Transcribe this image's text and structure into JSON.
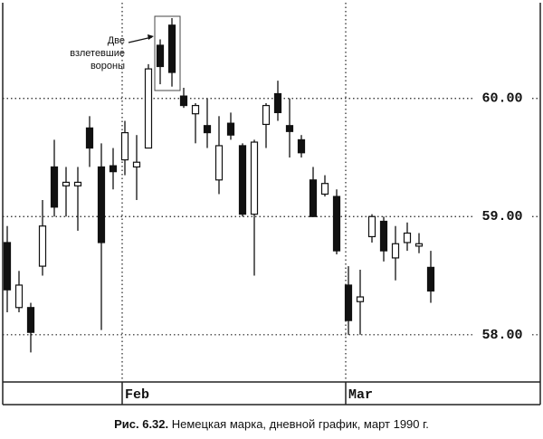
{
  "chart_data": {
    "type": "candlestick",
    "categories": [
      null,
      null,
      null,
      null,
      null,
      null,
      null,
      null,
      null,
      null,
      "Feb",
      null,
      null,
      null,
      null,
      null,
      null,
      null,
      null,
      null,
      null,
      null,
      null,
      null,
      null,
      null,
      null,
      null,
      null,
      "Mar",
      null,
      null,
      null,
      null,
      null,
      null,
      null
    ],
    "open": [
      58.78,
      58.23,
      58.23,
      58.58,
      59.42,
      59.26,
      59.26,
      59.75,
      59.42,
      59.43,
      59.48,
      59.42,
      59.58,
      60.45,
      60.62,
      60.02,
      59.87,
      59.77,
      59.31,
      59.79,
      59.6,
      59.02,
      59.78,
      60.04,
      59.77,
      59.65,
      59.31,
      59.19,
      59.17,
      58.42,
      58.28,
      58.83,
      58.96,
      58.65,
      58.78,
      58.75,
      58.57
    ],
    "high": [
      58.92,
      58.54,
      58.27,
      59.14,
      59.65,
      59.42,
      59.42,
      59.85,
      59.62,
      59.58,
      59.81,
      59.69,
      60.29,
      60.5,
      60.68,
      60.09,
      59.96,
      60.0,
      59.85,
      59.88,
      59.62,
      59.65,
      59.96,
      60.15,
      60.0,
      59.69,
      59.42,
      59.35,
      59.23,
      58.58,
      58.55,
      59.02,
      59.0,
      58.92,
      58.95,
      58.86,
      58.71
    ],
    "low": [
      58.19,
      58.19,
      57.85,
      58.5,
      59.0,
      59.0,
      58.88,
      59.42,
      58.04,
      59.23,
      59.35,
      59.14,
      59.58,
      60.12,
      60.1,
      59.92,
      59.62,
      59.58,
      59.19,
      59.65,
      59.0,
      58.5,
      59.58,
      59.81,
      59.5,
      59.5,
      59.0,
      59.17,
      58.68,
      58.0,
      58.0,
      58.78,
      58.62,
      58.46,
      58.71,
      58.69,
      58.27
    ],
    "close": [
      58.38,
      58.42,
      58.02,
      58.92,
      59.08,
      59.29,
      59.29,
      59.58,
      58.78,
      59.38,
      59.71,
      59.46,
      60.25,
      60.27,
      60.22,
      59.94,
      59.94,
      59.71,
      59.6,
      59.69,
      59.02,
      59.63,
      59.94,
      59.88,
      59.72,
      59.54,
      59.0,
      59.28,
      58.71,
      58.12,
      58.32,
      59.0,
      58.71,
      58.77,
      58.86,
      58.77,
      58.37
    ],
    "ylim": [
      57.6,
      60.81
    ],
    "yticks": [
      {
        "value": 58,
        "label": "58.00"
      },
      {
        "value": 59,
        "label": "59.00"
      },
      {
        "value": 60,
        "label": "60.00"
      }
    ],
    "grid": true,
    "annotation": [
      "Две",
      "взлетевшие",
      "вороны"
    ],
    "caption_label": "Рис. 6.32.",
    "caption_text": "Немецкая марка, дневной график, март 1990 г."
  }
}
